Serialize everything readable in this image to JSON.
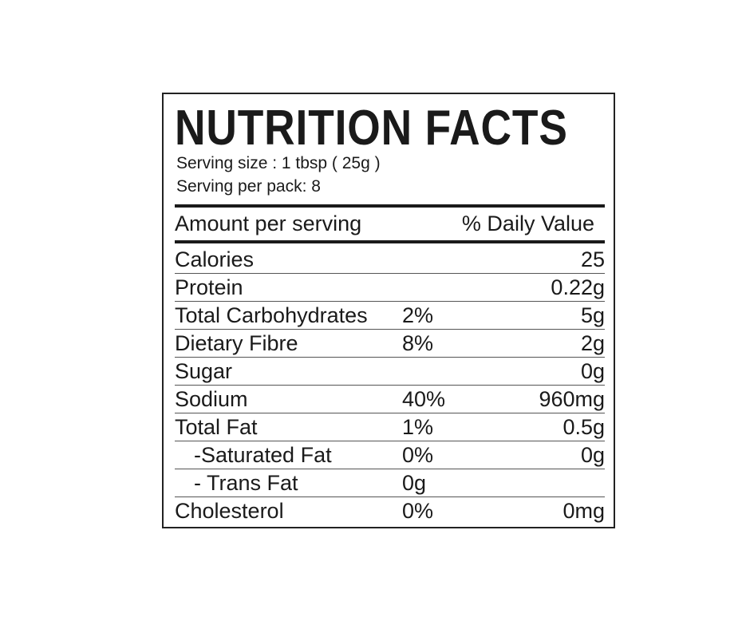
{
  "title": "NUTRITION FACTS",
  "serving_size": "Serving size : 1 tbsp ( 25g )",
  "serving_per_pack": "Serving per pack: 8",
  "header": {
    "amount": "Amount per serving",
    "daily_value": "% Daily Value"
  },
  "rows": [
    {
      "name": "Calories",
      "percent": "",
      "value": "25",
      "indent": false
    },
    {
      "name": "Protein",
      "percent": "",
      "value": "0.22g",
      "indent": false
    },
    {
      "name": "Total Carbohydrates",
      "percent": "2%",
      "value": "5g",
      "indent": false
    },
    {
      "name": "Dietary Fibre",
      "percent": "8%",
      "value": "2g",
      "indent": false
    },
    {
      "name": "Sugar",
      "percent": "",
      "value": "0g",
      "indent": false
    },
    {
      "name": "Sodium",
      "percent": "40%",
      "value": "960mg",
      "indent": false
    },
    {
      "name": "Total Fat",
      "percent": "1%",
      "value": "0.5g",
      "indent": false
    },
    {
      "name": "-Saturated Fat",
      "percent": "0%",
      "value": "0g",
      "indent": true
    },
    {
      "name": "- Trans Fat",
      "percent": "0g",
      "value": "",
      "indent": true
    },
    {
      "name": "Cholesterol",
      "percent": "0%",
      "value": "0mg",
      "indent": false
    }
  ]
}
